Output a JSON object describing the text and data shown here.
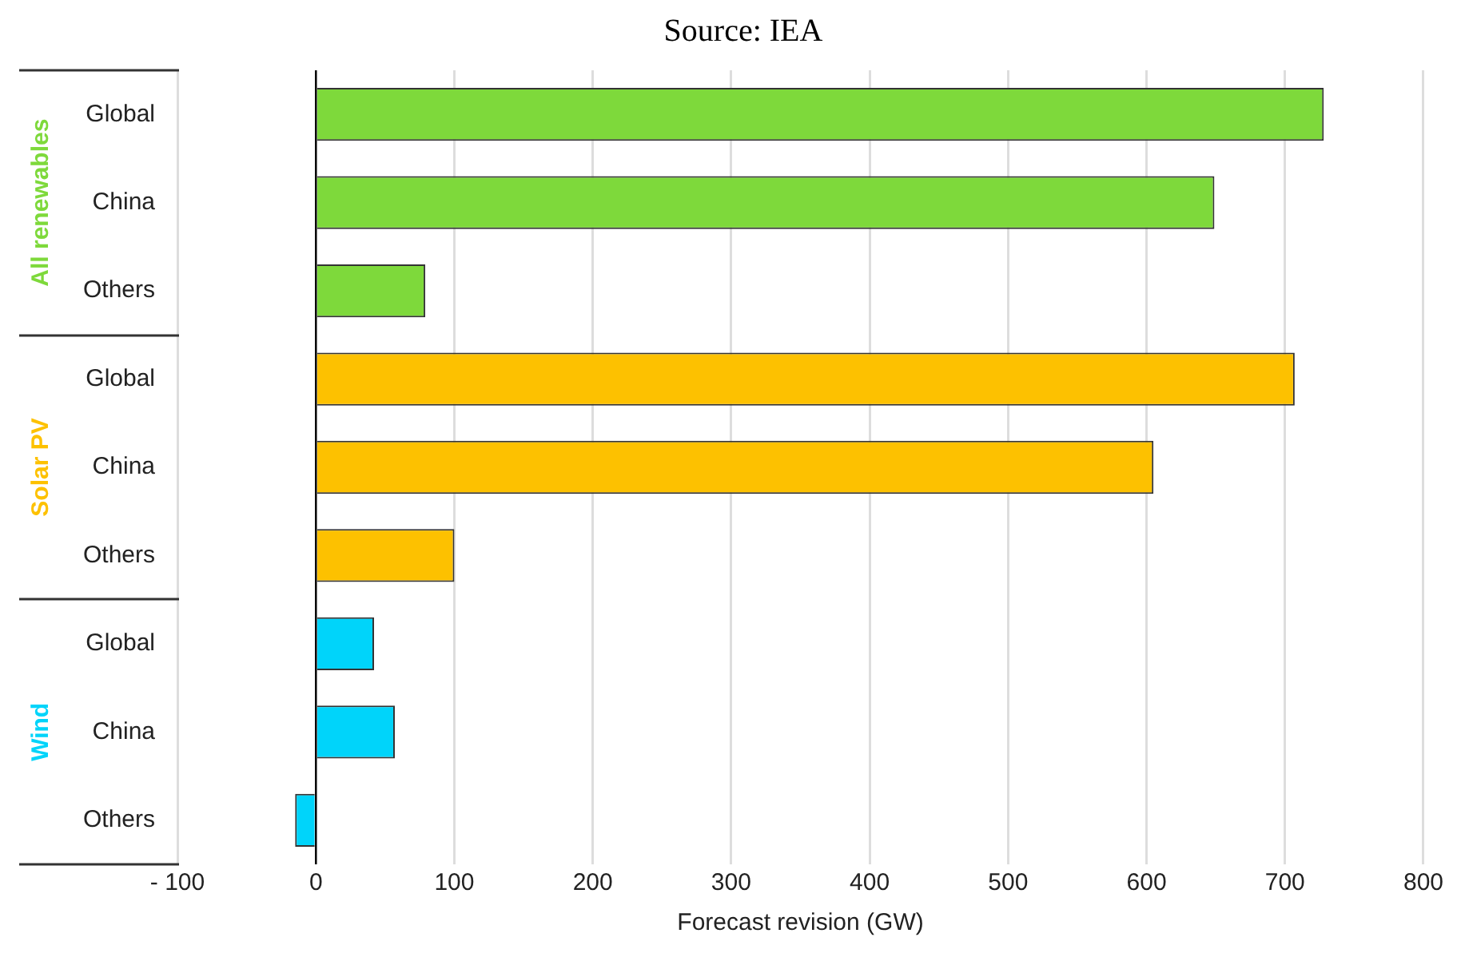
{
  "chart_data": {
    "type": "bar",
    "orientation": "horizontal",
    "title": "Source: IEA",
    "xlabel": "Forecast revision (GW)",
    "categories": [
      "Global",
      "China",
      "Others",
      "Global",
      "China",
      "Others",
      "Global",
      "China",
      "Others"
    ],
    "series": [
      {
        "name": "All renewables",
        "color": "#7ed93b",
        "values": [
          728,
          649,
          79,
          null,
          null,
          null,
          null,
          null,
          null
        ]
      },
      {
        "name": "Solar PV",
        "color": "#fdc100",
        "values": [
          null,
          null,
          null,
          707,
          605,
          100,
          null,
          null,
          null
        ]
      },
      {
        "name": "Wind",
        "color": "#00d4fa",
        "values": [
          null,
          null,
          null,
          null,
          null,
          null,
          42,
          57,
          -15
        ]
      }
    ],
    "xlim": [
      -100,
      800
    ],
    "xticks": [
      {
        "value": -100,
        "label": "- 100"
      },
      0,
      100,
      200,
      300,
      400,
      500,
      600,
      700,
      800
    ],
    "grid": "x",
    "legend": false
  }
}
